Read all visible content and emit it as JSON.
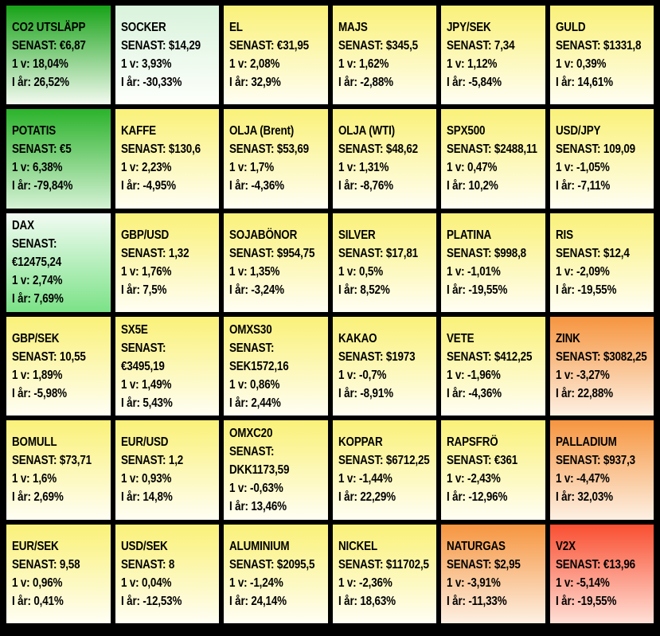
{
  "canvas": {
    "background": "#000000",
    "text_color": "#000000",
    "grid_line_color": "#000000"
  },
  "chart_data": {
    "type": "heatmap",
    "title": "",
    "rows": 6,
    "cols": 6,
    "legend": "none",
    "labels": {
      "last": "SENAST",
      "week": "1 v",
      "ytd": "I år"
    },
    "tones": {
      "green-strong": {
        "top": "#17A317",
        "bottom": "#F3FAF0"
      },
      "green-mid": {
        "top": "#2BB32B",
        "bottom": "#D5F1D5"
      },
      "green-pale": {
        "top": "#D9F3DC",
        "bottom": "#FEFFFB"
      },
      "green-rise": {
        "top": "#F2FBF3",
        "bottom": "#7BE287"
      },
      "yellow": {
        "top": "#FAF178",
        "bottom": "#FFFEF3"
      },
      "orange": {
        "top": "#F6953F",
        "bottom": "#FDF0E3"
      },
      "red": {
        "top": "#F94F31",
        "bottom": "#FFDFD6"
      }
    },
    "tiles": [
      {
        "name": "CO2 UTSLÄPP",
        "last": "€6,87",
        "week": "18,04%",
        "ytd": "26,52%",
        "tone": "green-strong",
        "wrap": false
      },
      {
        "name": "SOCKER",
        "last": "$14,29",
        "week": "3,93%",
        "ytd": "-30,33%",
        "tone": "green-pale",
        "wrap": false
      },
      {
        "name": "EL",
        "last": "€31,95",
        "week": "2,08%",
        "ytd": "32,9%",
        "tone": "yellow",
        "wrap": false
      },
      {
        "name": "MAJS",
        "last": "$345,5",
        "week": "1,62%",
        "ytd": "-2,88%",
        "tone": "yellow",
        "wrap": false
      },
      {
        "name": "JPY/SEK",
        "last": "7,34",
        "week": "1,12%",
        "ytd": "-5,84%",
        "tone": "yellow",
        "wrap": false
      },
      {
        "name": "GULD",
        "last": "$1331,8",
        "week": "0,39%",
        "ytd": "14,61%",
        "tone": "yellow",
        "wrap": false
      },
      {
        "name": "POTATIS",
        "last": "€5",
        "week": "6,38%",
        "ytd": "-79,84%",
        "tone": "green-mid",
        "wrap": false
      },
      {
        "name": "KAFFE",
        "last": "$130,6",
        "week": "2,23%",
        "ytd": "-4,95%",
        "tone": "yellow",
        "wrap": false
      },
      {
        "name": "OLJA (Brent)",
        "last": "$53,69",
        "week": "1,7%",
        "ytd": "-4,36%",
        "tone": "yellow",
        "wrap": false
      },
      {
        "name": "OLJA (WTI)",
        "last": "$48,62",
        "week": "1,31%",
        "ytd": "-8,76%",
        "tone": "yellow",
        "wrap": false
      },
      {
        "name": "SPX500",
        "last": "$2488,11",
        "week": "0,47%",
        "ytd": "10,2%",
        "tone": "yellow",
        "wrap": false
      },
      {
        "name": "USD/JPY",
        "last": "109,09",
        "week": "-1,05%",
        "ytd": "-7,11%",
        "tone": "yellow",
        "wrap": false
      },
      {
        "name": "DAX",
        "last": "€12475,24",
        "week": "2,74%",
        "ytd": "7,69%",
        "tone": "green-rise",
        "wrap": true
      },
      {
        "name": "GBP/USD",
        "last": "1,32",
        "week": "1,76%",
        "ytd": "7,5%",
        "tone": "yellow",
        "wrap": false
      },
      {
        "name": "SOJABÖNOR",
        "last": "$954,75",
        "week": "1,35%",
        "ytd": "-3,24%",
        "tone": "yellow",
        "wrap": false
      },
      {
        "name": "SILVER",
        "last": "$17,81",
        "week": "0,5%",
        "ytd": "8,52%",
        "tone": "yellow",
        "wrap": false
      },
      {
        "name": "PLATINA",
        "last": "$998,8",
        "week": "-1,01%",
        "ytd": "-19,55%",
        "tone": "yellow",
        "wrap": false
      },
      {
        "name": "RIS",
        "last": "$12,4",
        "week": "-2,09%",
        "ytd": "-19,55%",
        "tone": "yellow",
        "wrap": false
      },
      {
        "name": "GBP/SEK",
        "last": "10,55",
        "week": "1,89%",
        "ytd": "-5,98%",
        "tone": "yellow",
        "wrap": false
      },
      {
        "name": "SX5E",
        "last": "€3495,19",
        "week": "1,49%",
        "ytd": "5,43%",
        "tone": "yellow",
        "wrap": true
      },
      {
        "name": "OMXS30",
        "last": "SEK1572,16",
        "week": "0,86%",
        "ytd": "2,44%",
        "tone": "yellow",
        "wrap": true
      },
      {
        "name": "KAKAO",
        "last": "$1973",
        "week": "-0,7%",
        "ytd": "-8,91%",
        "tone": "yellow",
        "wrap": false
      },
      {
        "name": "VETE",
        "last": "$412,25",
        "week": "-1,96%",
        "ytd": "-4,36%",
        "tone": "yellow",
        "wrap": false
      },
      {
        "name": "ZINK",
        "last": "$3082,25",
        "week": "-3,27%",
        "ytd": "22,88%",
        "tone": "orange",
        "wrap": false
      },
      {
        "name": "BOMULL",
        "last": "$73,71",
        "week": "1,6%",
        "ytd": "2,69%",
        "tone": "yellow",
        "wrap": false
      },
      {
        "name": "EUR/USD",
        "last": "1,2",
        "week": "0,93%",
        "ytd": "14,8%",
        "tone": "yellow",
        "wrap": false
      },
      {
        "name": "OMXC20",
        "last": "DKK1173,59",
        "week": "-0,63%",
        "ytd": "13,46%",
        "tone": "yellow",
        "wrap": true
      },
      {
        "name": "KOPPAR",
        "last": "$6712,25",
        "week": "-1,44%",
        "ytd": "22,29%",
        "tone": "yellow",
        "wrap": false
      },
      {
        "name": "RAPSFRÖ",
        "last": "€361",
        "week": "-2,43%",
        "ytd": "-12,96%",
        "tone": "yellow",
        "wrap": false
      },
      {
        "name": "PALLADIUM",
        "last": "$937,3",
        "week": "-4,47%",
        "ytd": "32,03%",
        "tone": "orange",
        "wrap": false
      },
      {
        "name": "EUR/SEK",
        "last": "9,58",
        "week": "0,96%",
        "ytd": "0,41%",
        "tone": "yellow",
        "wrap": false
      },
      {
        "name": "USD/SEK",
        "last": "8",
        "week": "0,04%",
        "ytd": "-12,53%",
        "tone": "yellow",
        "wrap": false
      },
      {
        "name": "ALUMINIUM",
        "last": "$2095,5",
        "week": "-1,24%",
        "ytd": "24,14%",
        "tone": "yellow",
        "wrap": false
      },
      {
        "name": "NICKEL",
        "last": "$11702,5",
        "week": "-2,36%",
        "ytd": "18,63%",
        "tone": "yellow",
        "wrap": false
      },
      {
        "name": "NATURGAS",
        "last": "$2,95",
        "week": "-3,91%",
        "ytd": "-11,33%",
        "tone": "orange",
        "wrap": false
      },
      {
        "name": "V2X",
        "last": "€13,96",
        "week": "-5,14%",
        "ytd": "-19,55%",
        "tone": "red",
        "wrap": false
      }
    ]
  }
}
